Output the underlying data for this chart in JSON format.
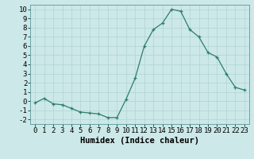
{
  "x": [
    0,
    1,
    2,
    3,
    4,
    5,
    6,
    7,
    8,
    9,
    10,
    11,
    12,
    13,
    14,
    15,
    16,
    17,
    18,
    19,
    20,
    21,
    22,
    23
  ],
  "y": [
    -0.2,
    0.3,
    -0.3,
    -0.4,
    -0.8,
    -1.2,
    -1.3,
    -1.4,
    -1.8,
    -1.8,
    0.2,
    2.5,
    6.0,
    7.8,
    8.5,
    10.0,
    9.8,
    7.8,
    7.0,
    5.3,
    4.8,
    3.0,
    1.5,
    1.2
  ],
  "line_color": "#2e7d6e",
  "marker_color": "#2e7d6e",
  "bg_color": "#cce8e8",
  "grid_color": "#b0d4d4",
  "xlabel": "Humidex (Indice chaleur)",
  "xlim": [
    -0.5,
    23.5
  ],
  "ylim": [
    -2.5,
    10.5
  ],
  "yticks": [
    -2,
    -1,
    0,
    1,
    2,
    3,
    4,
    5,
    6,
    7,
    8,
    9,
    10
  ],
  "xtick_labels": [
    "0",
    "1",
    "2",
    "3",
    "4",
    "5",
    "6",
    "7",
    "8",
    "9",
    "10",
    "11",
    "12",
    "13",
    "14",
    "15",
    "16",
    "17",
    "18",
    "19",
    "20",
    "21",
    "22",
    "23"
  ],
  "tick_fontsize": 6.5,
  "label_fontsize": 7.5
}
